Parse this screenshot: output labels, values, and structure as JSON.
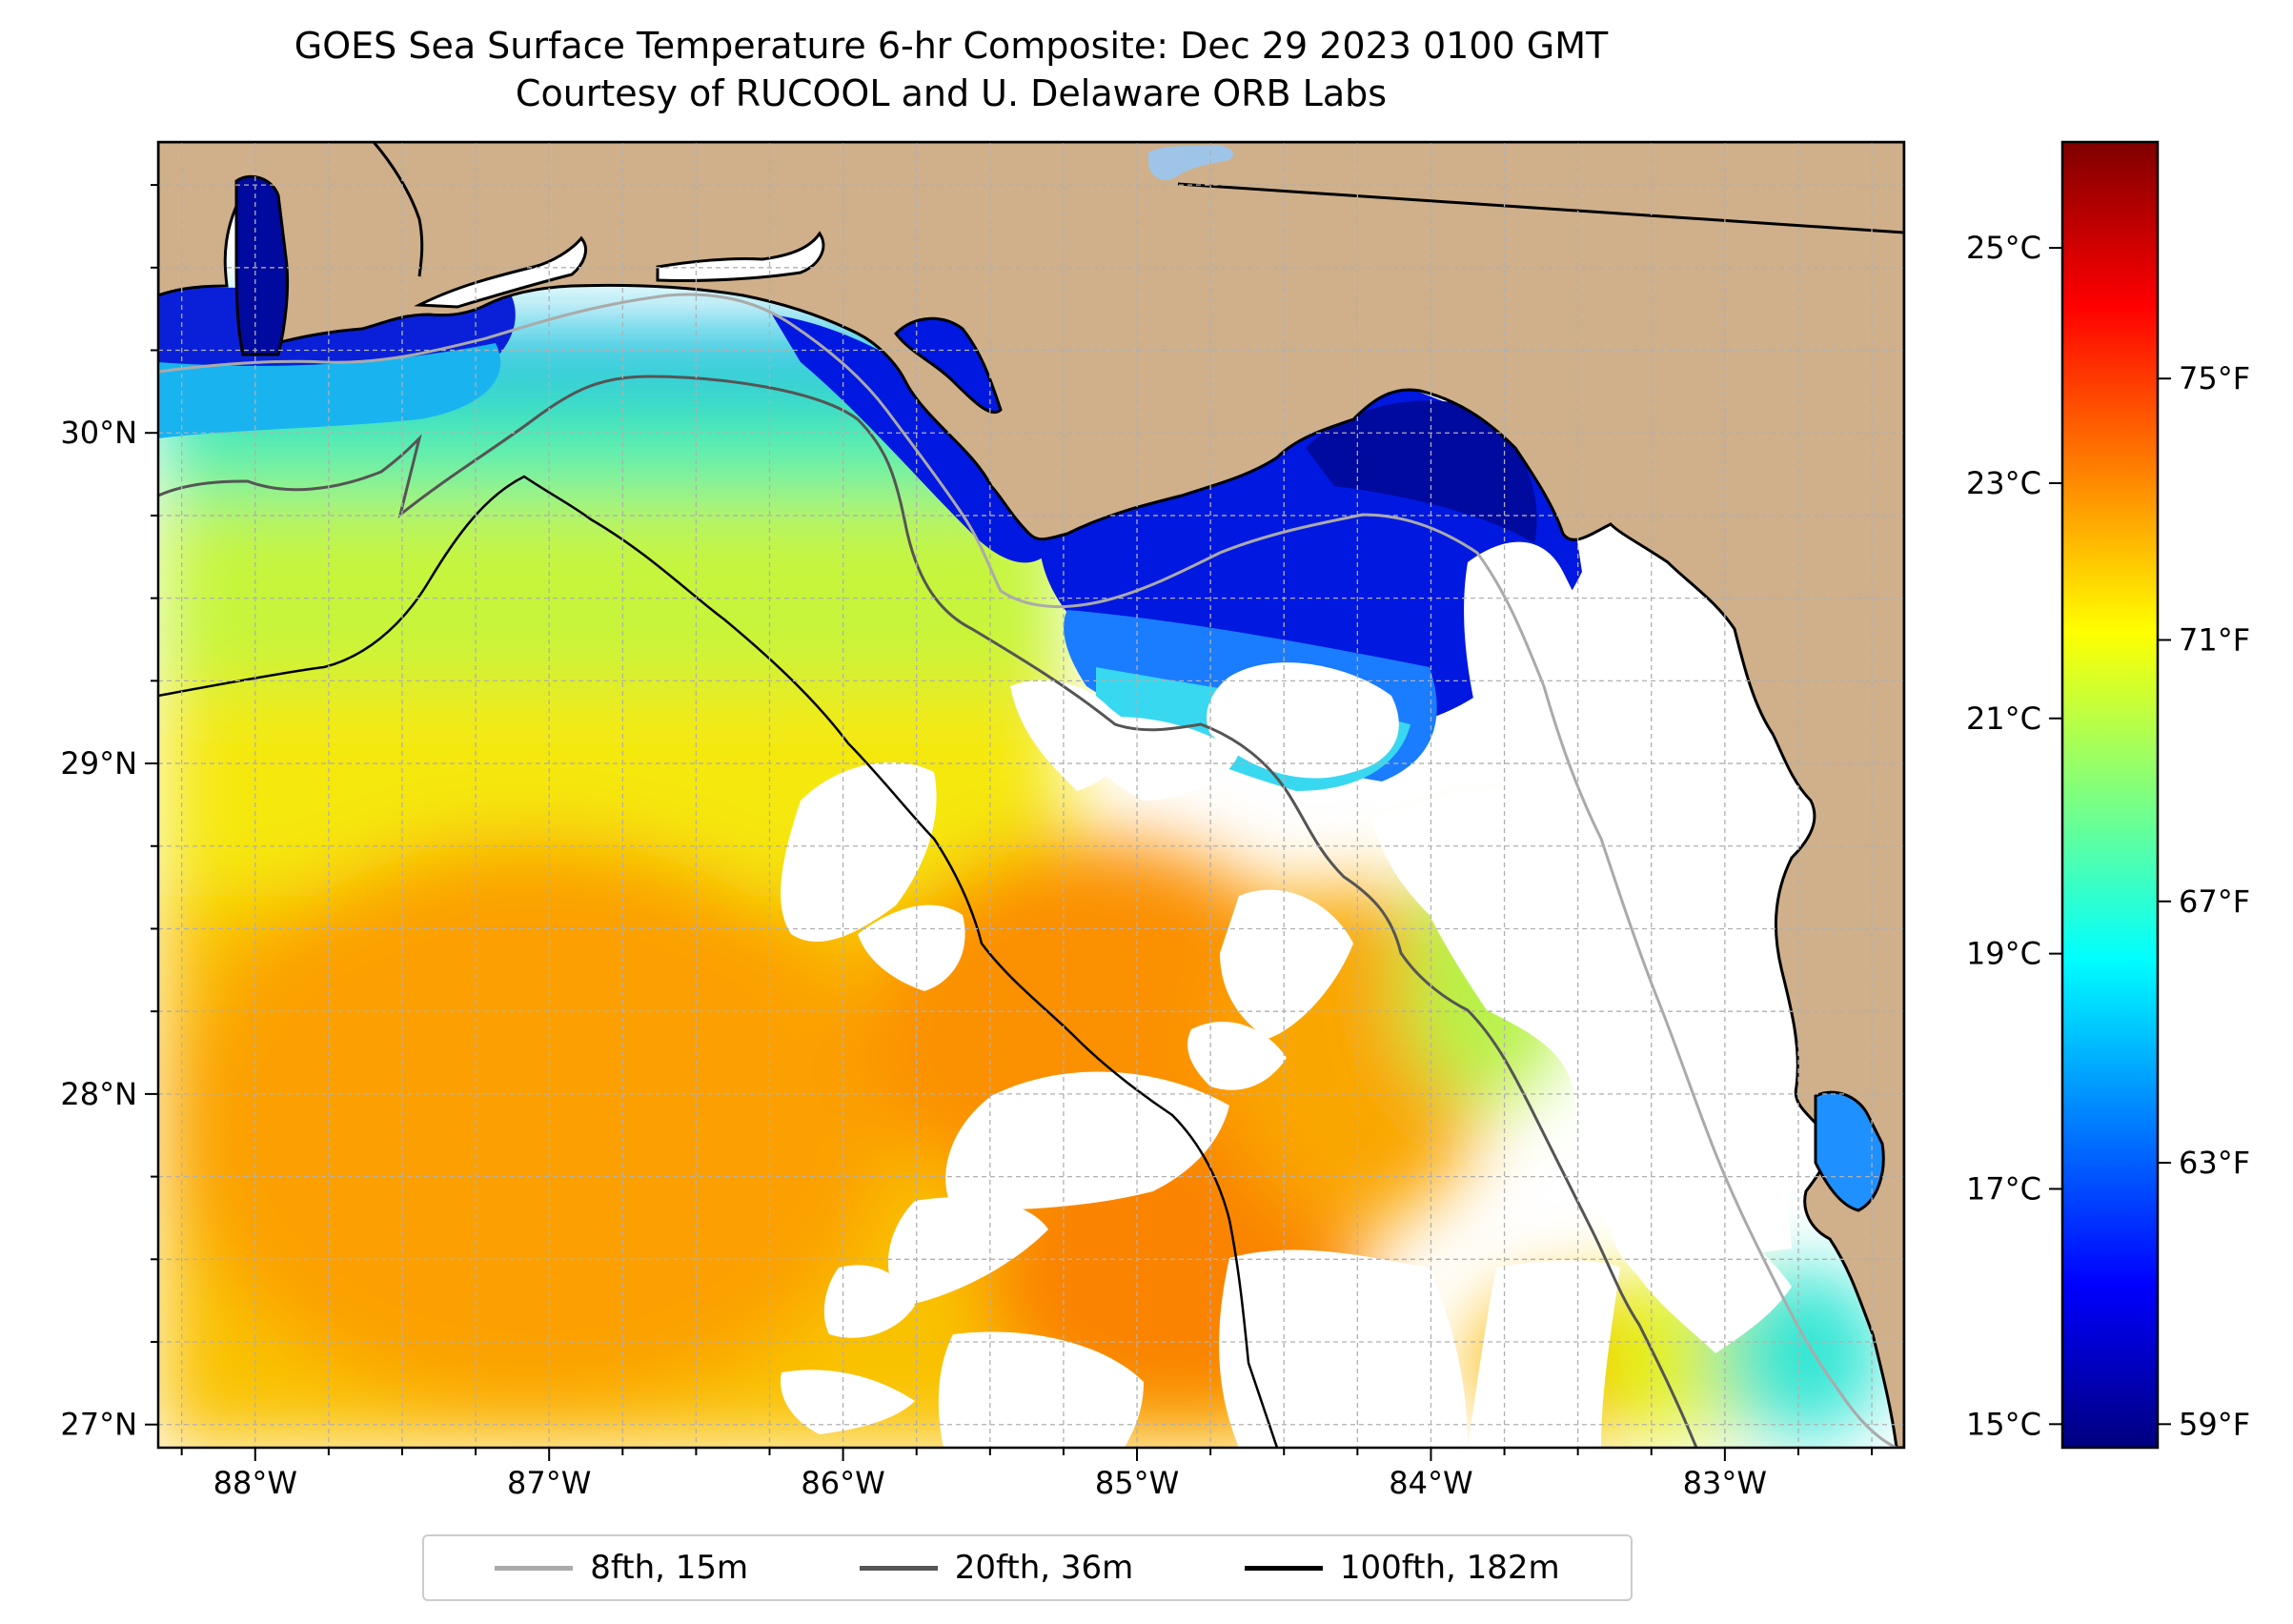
{
  "title": {
    "line1": "GOES Sea Surface Temperature 6-hr Composite: Dec 29 2023 0100 GMT",
    "line2": "Courtesy of RUCOOL and U. Delaware ORB Labs"
  },
  "colors": {
    "land": "#cfb08a",
    "ocean_nodata": "#ffffff",
    "lake": "#9ec5e8",
    "coastline": "#000000",
    "grid": "#b0b0b0",
    "isobath_8fth": "#aaaaaa",
    "isobath_20fth": "#555555",
    "isobath_100fth": "#000000"
  },
  "map": {
    "lon_range": [
      -88.33,
      -82.39
    ],
    "lat_range": [
      26.93,
      30.88
    ],
    "lon_ticks": [
      {
        "value": -88,
        "label": "88°W"
      },
      {
        "value": -87,
        "label": "87°W"
      },
      {
        "value": -86,
        "label": "86°W"
      },
      {
        "value": -85,
        "label": "85°W"
      },
      {
        "value": -84,
        "label": "84°W"
      },
      {
        "value": -83,
        "label": "83°W"
      }
    ],
    "lat_ticks": [
      {
        "value": 30,
        "label": "30°N"
      },
      {
        "value": 29,
        "label": "29°N"
      },
      {
        "value": 28,
        "label": "28°N"
      },
      {
        "value": 27,
        "label": "27°N"
      }
    ]
  },
  "colorbar": {
    "range_c": [
      14.8,
      25.9
    ],
    "celsius_ticks": [
      {
        "value": 25,
        "label": "25°C"
      },
      {
        "value": 23,
        "label": "23°C"
      },
      {
        "value": 21,
        "label": "21°C"
      },
      {
        "value": 19,
        "label": "19°C"
      },
      {
        "value": 17,
        "label": "17°C"
      },
      {
        "value": 15,
        "label": "15°C"
      }
    ],
    "fahrenheit_ticks": [
      {
        "value": 75,
        "label": "75°F"
      },
      {
        "value": 71,
        "label": "71°F"
      },
      {
        "value": 67,
        "label": "67°F"
      },
      {
        "value": 63,
        "label": "63°F"
      },
      {
        "value": 59,
        "label": "59°F"
      }
    ],
    "stops": [
      "#00007f",
      "#0000ff",
      "#007fff",
      "#00ffff",
      "#7fff7f",
      "#ffff00",
      "#ff7f00",
      "#ff0000",
      "#7f0000"
    ]
  },
  "legend": {
    "items": [
      {
        "label": "8fth, 15m",
        "color": "#aaaaaa"
      },
      {
        "label": "20fth, 36m",
        "color": "#555555"
      },
      {
        "label": "100fth, 182m",
        "color": "#000000"
      }
    ]
  }
}
